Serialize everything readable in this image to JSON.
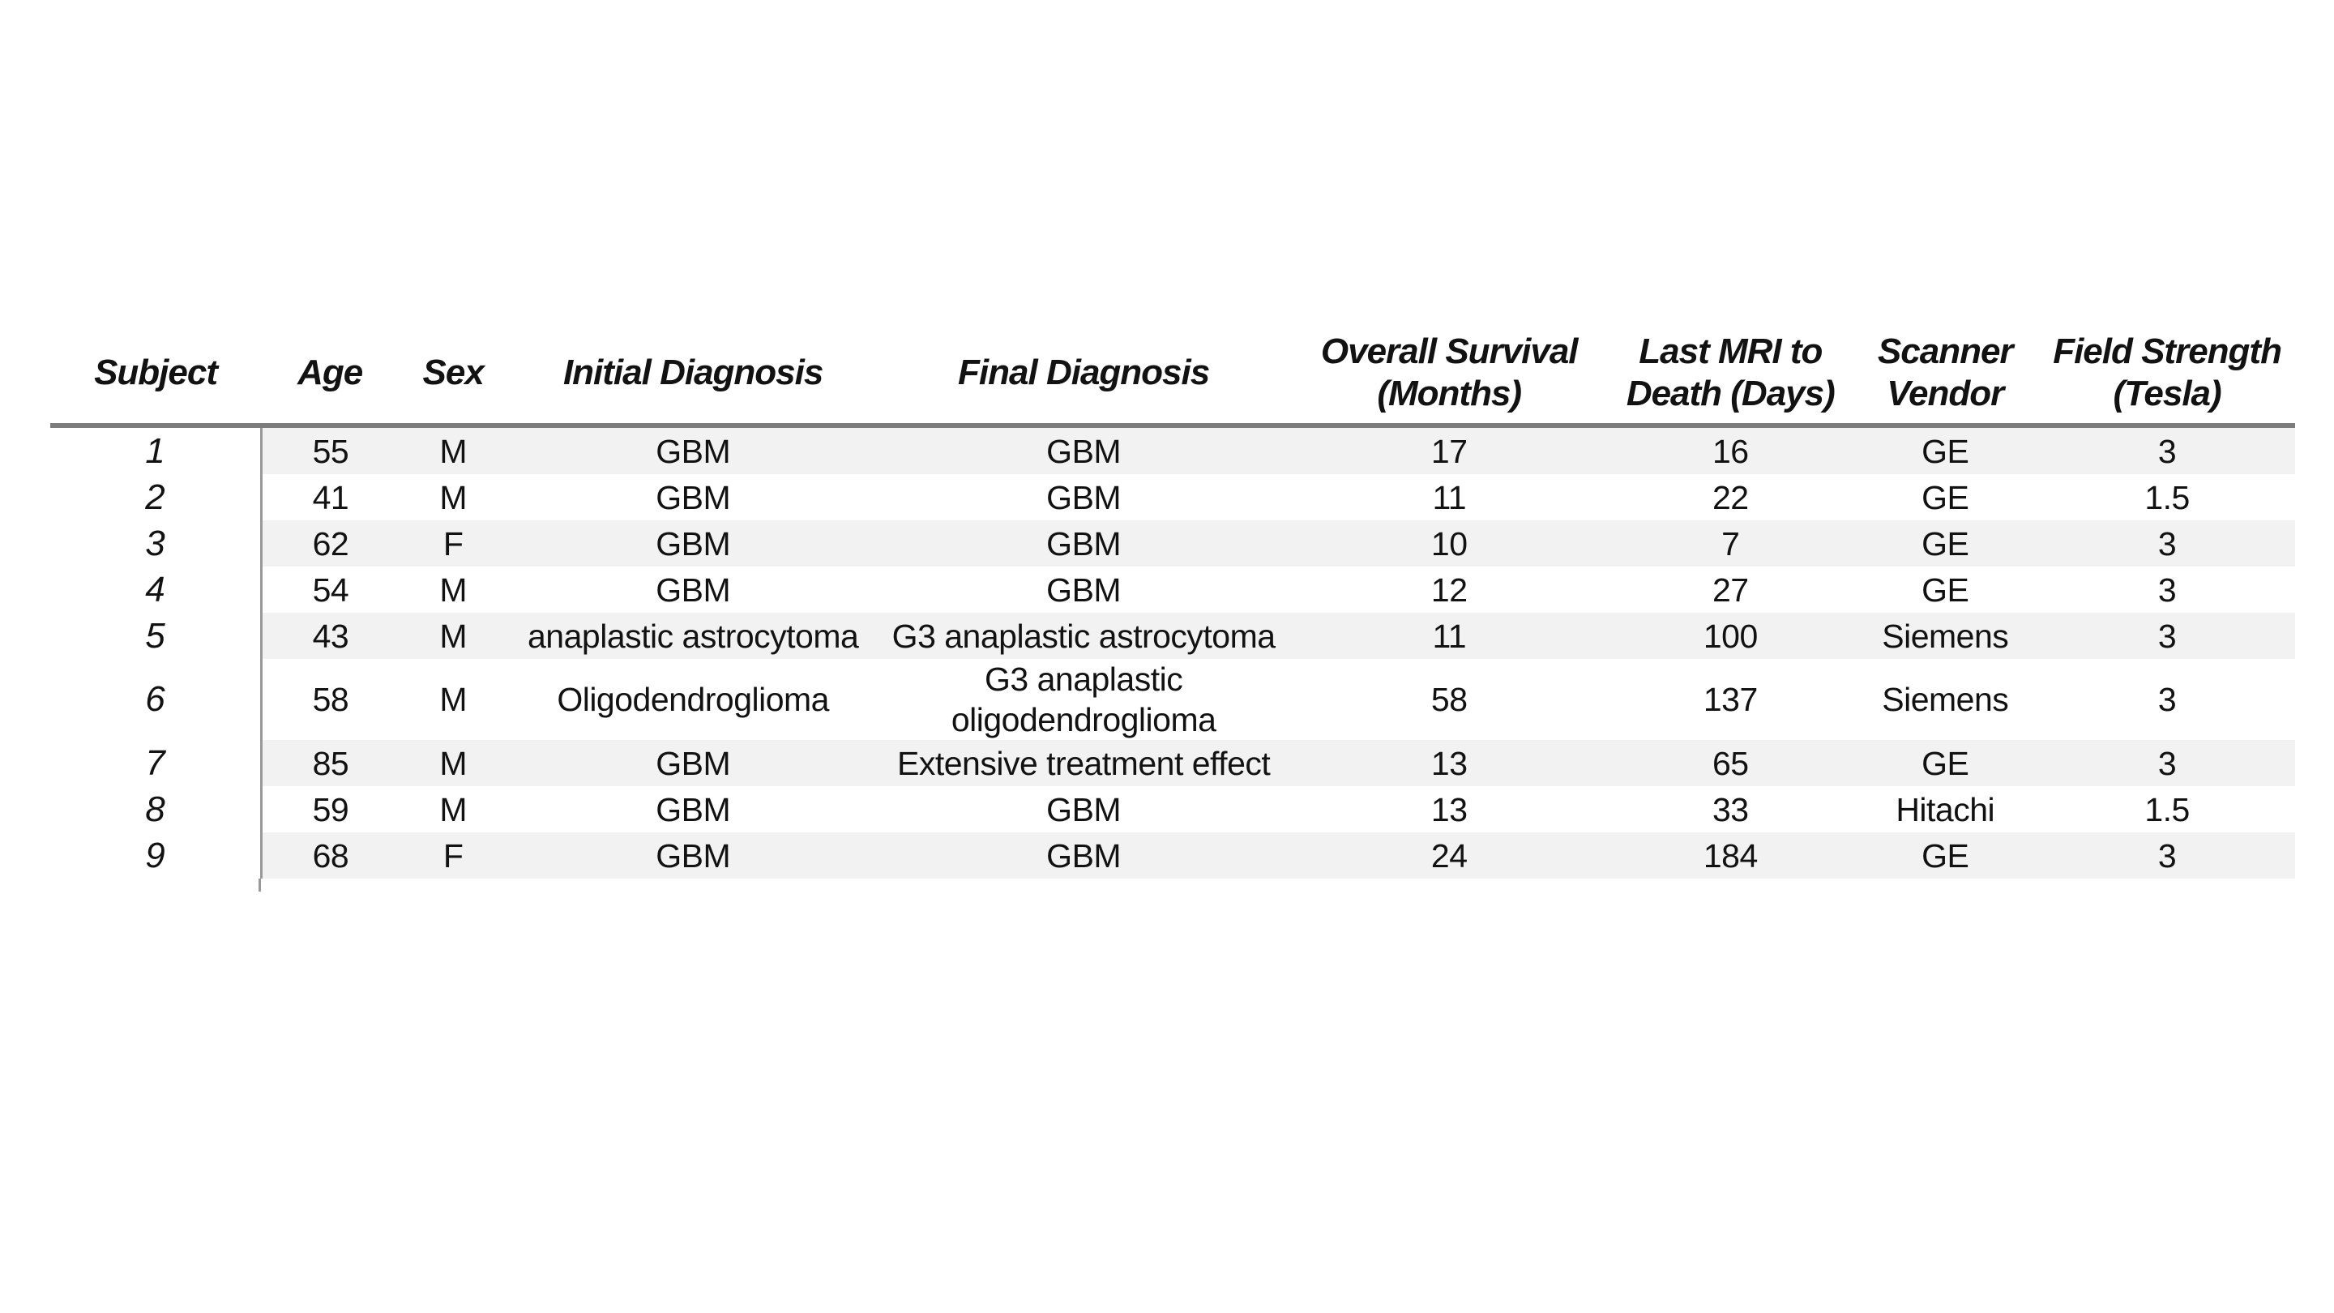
{
  "page": {
    "background_color": "#ffffff",
    "text_color": "#121212"
  },
  "table": {
    "styles": {
      "stripe_color": "#f2f2f2",
      "header_rule_color": "#7c7c7c",
      "divider_color": "#999999"
    },
    "columns": [
      {
        "key": "subject",
        "label_lines": [
          "Subject"
        ],
        "width_pct": 9.39
      },
      {
        "key": "age",
        "label_lines": [
          "Age"
        ],
        "width_pct": 6.14
      },
      {
        "key": "sex",
        "label_lines": [
          "Sex"
        ],
        "width_pct": 4.84
      },
      {
        "key": "initial_diagnosis",
        "label_lines": [
          "Initial Diagnosis"
        ],
        "width_pct": 16.53
      },
      {
        "key": "final_diagnosis",
        "label_lines": [
          "Final Diagnosis"
        ],
        "width_pct": 18.27
      },
      {
        "key": "overall_survival_months",
        "label_lines": [
          "Overall Survival",
          "(Months)"
        ],
        "width_pct": 14.3
      },
      {
        "key": "last_mri_to_death_days",
        "label_lines": [
          "Last MRI to",
          "Death (Days)"
        ],
        "width_pct": 10.76
      },
      {
        "key": "scanner_vendor",
        "label_lines": [
          "Scanner",
          "Vendor"
        ],
        "width_pct": 8.37
      },
      {
        "key": "field_strength_tesla",
        "label_lines": [
          "Field Strength",
          "(Tesla)"
        ],
        "width_pct": 11.4
      }
    ],
    "rows": [
      {
        "subject": "1",
        "age": "55",
        "sex": "M",
        "initial_diagnosis": "GBM",
        "final_diagnosis": "GBM",
        "overall_survival_months": "17",
        "last_mri_to_death_days": "16",
        "scanner_vendor": "GE",
        "field_strength_tesla": "3"
      },
      {
        "subject": "2",
        "age": "41",
        "sex": "M",
        "initial_diagnosis": "GBM",
        "final_diagnosis": "GBM",
        "overall_survival_months": "11",
        "last_mri_to_death_days": "22",
        "scanner_vendor": "GE",
        "field_strength_tesla": "1.5"
      },
      {
        "subject": "3",
        "age": "62",
        "sex": "F",
        "initial_diagnosis": "GBM",
        "final_diagnosis": "GBM",
        "overall_survival_months": "10",
        "last_mri_to_death_days": "7",
        "scanner_vendor": "GE",
        "field_strength_tesla": "3"
      },
      {
        "subject": "4",
        "age": "54",
        "sex": "M",
        "initial_diagnosis": "GBM",
        "final_diagnosis": "GBM",
        "overall_survival_months": "12",
        "last_mri_to_death_days": "27",
        "scanner_vendor": "GE",
        "field_strength_tesla": "3"
      },
      {
        "subject": "5",
        "age": "43",
        "sex": "M",
        "initial_diagnosis": "anaplastic astrocytoma",
        "final_diagnosis": "G3 anaplastic astrocytoma",
        "overall_survival_months": "11",
        "last_mri_to_death_days": "100",
        "scanner_vendor": "Siemens",
        "field_strength_tesla": "3"
      },
      {
        "subject": "6",
        "age": "58",
        "sex": "M",
        "initial_diagnosis": "Oligodendroglioma",
        "final_diagnosis": [
          "G3 anaplastic",
          "oligodendroglioma"
        ],
        "overall_survival_months": "58",
        "last_mri_to_death_days": "137",
        "scanner_vendor": "Siemens",
        "field_strength_tesla": "3"
      },
      {
        "subject": "7",
        "age": "85",
        "sex": "M",
        "initial_diagnosis": "GBM",
        "final_diagnosis": "Extensive treatment effect",
        "overall_survival_months": "13",
        "last_mri_to_death_days": "65",
        "scanner_vendor": "GE",
        "field_strength_tesla": "3"
      },
      {
        "subject": "8",
        "age": "59",
        "sex": "M",
        "initial_diagnosis": "GBM",
        "final_diagnosis": "GBM",
        "overall_survival_months": "13",
        "last_mri_to_death_days": "33",
        "scanner_vendor": "Hitachi",
        "field_strength_tesla": "1.5"
      },
      {
        "subject": "9",
        "age": "68",
        "sex": "F",
        "initial_diagnosis": "GBM",
        "final_diagnosis": "GBM",
        "overall_survival_months": "24",
        "last_mri_to_death_days": "184",
        "scanner_vendor": "GE",
        "field_strength_tesla": "3"
      }
    ]
  },
  "chart_data": {
    "type": "table",
    "title": "",
    "columns": [
      "Subject",
      "Age",
      "Sex",
      "Initial Diagnosis",
      "Final Diagnosis",
      "Overall Survival (Months)",
      "Last MRI to Death (Days)",
      "Scanner Vendor",
      "Field Strength (Tesla)"
    ],
    "rows": [
      [
        "1",
        "55",
        "M",
        "GBM",
        "GBM",
        "17",
        "16",
        "GE",
        "3"
      ],
      [
        "2",
        "41",
        "M",
        "GBM",
        "GBM",
        "11",
        "22",
        "GE",
        "1.5"
      ],
      [
        "3",
        "62",
        "F",
        "GBM",
        "GBM",
        "10",
        "7",
        "GE",
        "3"
      ],
      [
        "4",
        "54",
        "M",
        "GBM",
        "GBM",
        "12",
        "27",
        "GE",
        "3"
      ],
      [
        "5",
        "43",
        "M",
        "anaplastic astrocytoma",
        "G3 anaplastic astrocytoma",
        "11",
        "100",
        "Siemens",
        "3"
      ],
      [
        "6",
        "58",
        "M",
        "Oligodendroglioma",
        "G3 anaplastic oligodendroglioma",
        "58",
        "137",
        "Siemens",
        "3"
      ],
      [
        "7",
        "85",
        "M",
        "GBM",
        "Extensive treatment effect",
        "13",
        "65",
        "GE",
        "3"
      ],
      [
        "8",
        "59",
        "M",
        "GBM",
        "GBM",
        "13",
        "33",
        "Hitachi",
        "1.5"
      ],
      [
        "9",
        "68",
        "F",
        "GBM",
        "GBM",
        "24",
        "184",
        "GE",
        "3"
      ]
    ]
  }
}
